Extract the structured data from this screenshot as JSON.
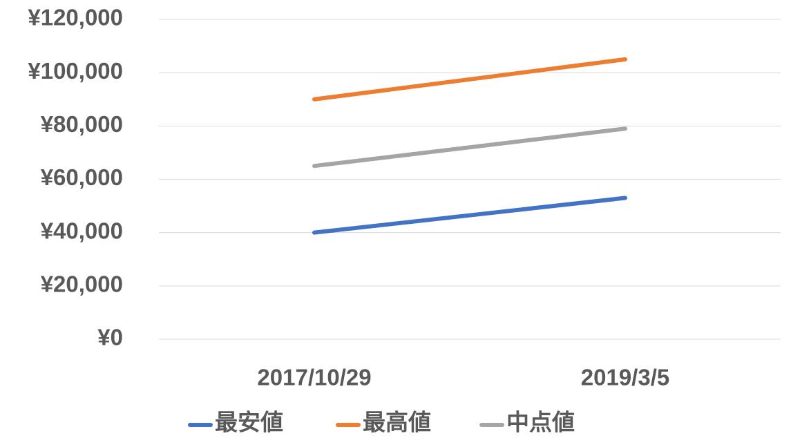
{
  "chart_data": {
    "type": "line",
    "categories": [
      "2017/10/29",
      "2019/3/5"
    ],
    "series": [
      {
        "name": "最安値",
        "color": "#4472c4",
        "values": [
          40000,
          53000
        ]
      },
      {
        "name": "最高値",
        "color": "#ed7d31",
        "values": [
          90000,
          105000
        ]
      },
      {
        "name": "中点値",
        "color": "#a5a5a5",
        "values": [
          65000,
          79000
        ]
      }
    ],
    "ylim": [
      0,
      120000
    ],
    "yticks": [
      {
        "value": 0,
        "label": "¥0"
      },
      {
        "value": 20000,
        "label": "¥20,000"
      },
      {
        "value": 40000,
        "label": "¥40,000"
      },
      {
        "value": 60000,
        "label": "¥60,000"
      },
      {
        "value": 80000,
        "label": "¥80,000"
      },
      {
        "value": 100000,
        "label": "¥100,000"
      },
      {
        "value": 120000,
        "label": "¥120,000"
      }
    ],
    "grid": true,
    "legend": "bottom"
  }
}
